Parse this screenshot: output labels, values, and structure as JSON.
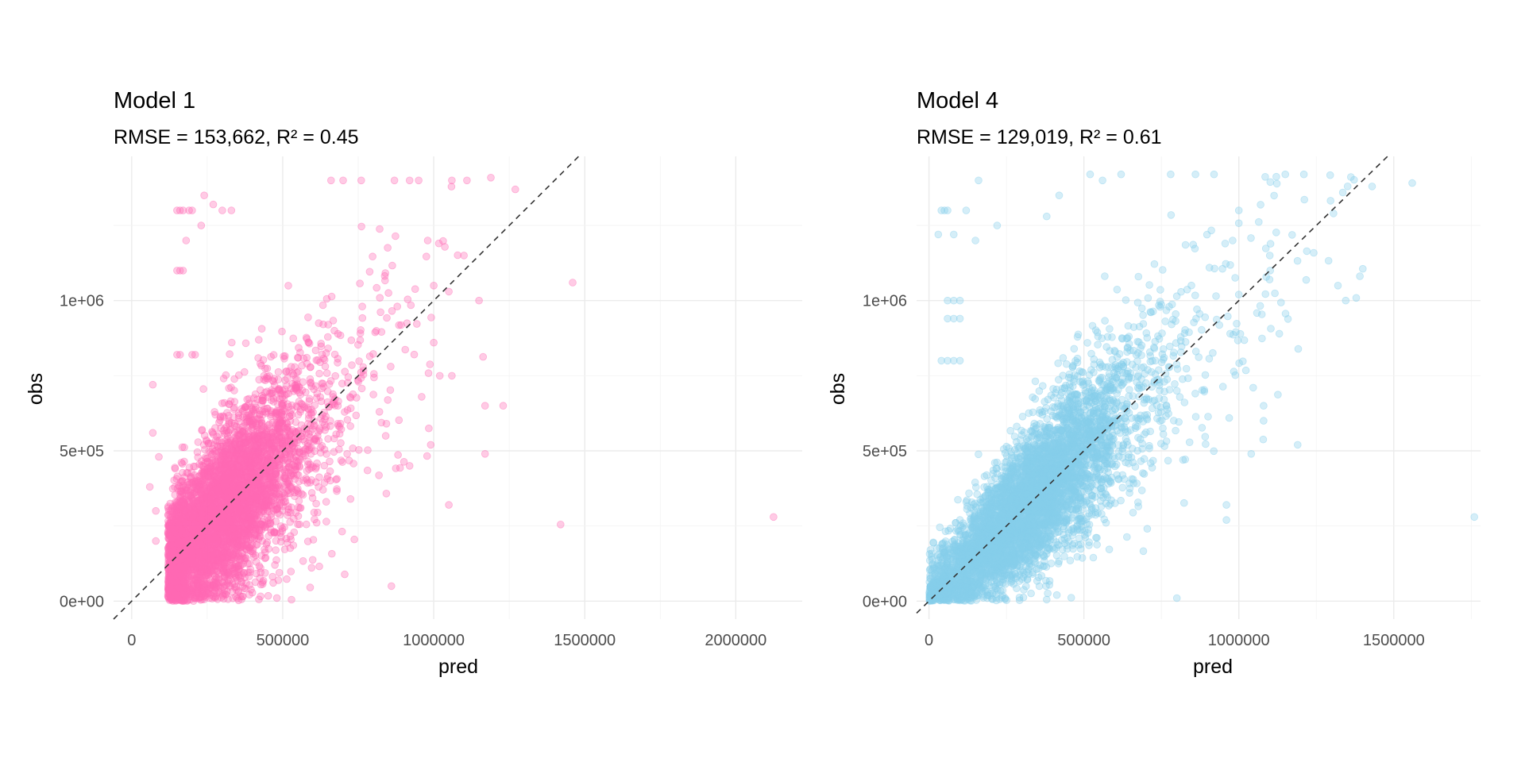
{
  "colors": {
    "panel_1_points": "#ff69b4",
    "panel_2_points": "#87ceeb",
    "reference_line": "#333333",
    "grid": "#ebebeb",
    "text": "#000000",
    "tick_text": "#4d4d4d"
  },
  "chart_data": [
    {
      "type": "scatter",
      "title": "Model 1",
      "subtitle": "RMSE = 153,662, R² = 0.45",
      "xlabel": "pred",
      "ylabel": "obs",
      "xlim": [
        -60000,
        2220000
      ],
      "ylim": [
        -60000,
        1480000
      ],
      "x_ticks": [
        0,
        500000,
        1000000,
        1500000,
        2000000
      ],
      "x_tick_labels": [
        "0",
        "500000",
        "1000000",
        "1500000",
        "2000000"
      ],
      "y_ticks": [
        0,
        500000,
        1000000
      ],
      "y_tick_labels": [
        "0e+00",
        "5e+05",
        "1e+06"
      ],
      "grid": true,
      "reference_line": {
        "style": "dashed",
        "slope": 1,
        "intercept": 0
      },
      "point_color": "#ff69b4",
      "point_opacity": 0.35,
      "points": [
        [
          2125000,
          280000
        ],
        [
          1420000,
          255000
        ],
        [
          1460000,
          1060000
        ],
        [
          1270000,
          1370000
        ],
        [
          1230000,
          650000
        ],
        [
          1170000,
          490000
        ],
        [
          1170000,
          650000
        ],
        [
          1150000,
          1000000
        ],
        [
          1110000,
          1400000
        ],
        [
          1050000,
          1030000
        ],
        [
          1050000,
          320000
        ],
        [
          990000,
          520000
        ],
        [
          950000,
          1400000
        ],
        [
          920000,
          1400000
        ],
        [
          870000,
          1400000
        ],
        [
          860000,
          50000
        ],
        [
          1020000,
          750000
        ],
        [
          980000,
          1200000
        ],
        [
          1000000,
          860000
        ],
        [
          1060000,
          750000
        ],
        [
          760000,
          1400000
        ],
        [
          700000,
          1400000
        ],
        [
          660000,
          1400000
        ],
        [
          1060000,
          1400000
        ],
        [
          1100000,
          1150000
        ],
        [
          1000000,
          1050000
        ],
        [
          960000,
          680000
        ],
        [
          920000,
          450000
        ],
        [
          150000,
          1300000
        ],
        [
          160000,
          1300000
        ],
        [
          170000,
          1300000
        ],
        [
          190000,
          1300000
        ],
        [
          200000,
          1300000
        ],
        [
          150000,
          1100000
        ],
        [
          160000,
          1100000
        ],
        [
          170000,
          1100000
        ],
        [
          150000,
          820000
        ],
        [
          160000,
          820000
        ],
        [
          200000,
          820000
        ],
        [
          210000,
          820000
        ],
        [
          180000,
          1200000
        ],
        [
          230000,
          1250000
        ],
        [
          330000,
          1300000
        ],
        [
          300000,
          1300000
        ],
        [
          60000,
          380000
        ],
        [
          80000,
          300000
        ],
        [
          70000,
          560000
        ],
        [
          70000,
          720000
        ],
        [
          80000,
          200000
        ],
        [
          90000,
          480000
        ],
        [
          240000,
          1350000
        ],
        [
          270000,
          1320000
        ]
      ],
      "cloud": {
        "count": 5200,
        "x_center": 280000,
        "x_spread": 130000,
        "x_min": 120000,
        "slope": 0.98,
        "residual_sd": 145000
      }
    },
    {
      "type": "scatter",
      "title": "Model 4",
      "subtitle": "RMSE = 129,019, R² = 0.61",
      "xlabel": "pred",
      "ylabel": "obs",
      "xlim": [
        -40000,
        1780000
      ],
      "ylim": [
        -60000,
        1480000
      ],
      "x_ticks": [
        0,
        500000,
        1000000,
        1500000
      ],
      "x_tick_labels": [
        "0",
        "500000",
        "1000000",
        "1500000"
      ],
      "y_ticks": [
        0,
        500000,
        1000000
      ],
      "y_tick_labels": [
        "0e+00",
        "5e+05",
        "1e+06"
      ],
      "grid": true,
      "reference_line": {
        "style": "dashed",
        "slope": 1,
        "intercept": 0
      },
      "point_color": "#87ceeb",
      "point_opacity": 0.35,
      "points": [
        [
          1760000,
          280000
        ],
        [
          1430000,
          1380000
        ],
        [
          1345000,
          1000000
        ],
        [
          1320000,
          1050000
        ],
        [
          1210000,
          1420000
        ],
        [
          1190000,
          520000
        ],
        [
          1150000,
          1420000
        ],
        [
          1080000,
          650000
        ],
        [
          1080000,
          600000
        ],
        [
          1040000,
          490000
        ],
        [
          960000,
          270000
        ],
        [
          960000,
          320000
        ],
        [
          800000,
          10000
        ],
        [
          1000000,
          1300000
        ],
        [
          980000,
          1200000
        ],
        [
          920000,
          1420000
        ],
        [
          860000,
          1420000
        ],
        [
          780000,
          1420000
        ],
        [
          1100000,
          1150000
        ],
        [
          40000,
          1300000
        ],
        [
          50000,
          1300000
        ],
        [
          60000,
          1300000
        ],
        [
          30000,
          1220000
        ],
        [
          80000,
          1220000
        ],
        [
          60000,
          1000000
        ],
        [
          80000,
          1000000
        ],
        [
          100000,
          1000000
        ],
        [
          60000,
          940000
        ],
        [
          80000,
          940000
        ],
        [
          100000,
          940000
        ],
        [
          40000,
          800000
        ],
        [
          60000,
          800000
        ],
        [
          80000,
          800000
        ],
        [
          100000,
          800000
        ],
        [
          160000,
          1400000
        ],
        [
          520000,
          1420000
        ],
        [
          560000,
          1400000
        ],
        [
          620000,
          1420000
        ],
        [
          420000,
          1350000
        ],
        [
          380000,
          1280000
        ],
        [
          150000,
          1200000
        ],
        [
          220000,
          1250000
        ],
        [
          120000,
          1300000
        ],
        [
          1000000,
          1020000
        ]
      ],
      "cloud": {
        "count": 5200,
        "x_center": 300000,
        "x_spread": 165000,
        "x_min": 0,
        "slope": 1.0,
        "residual_sd": 120000
      }
    }
  ]
}
